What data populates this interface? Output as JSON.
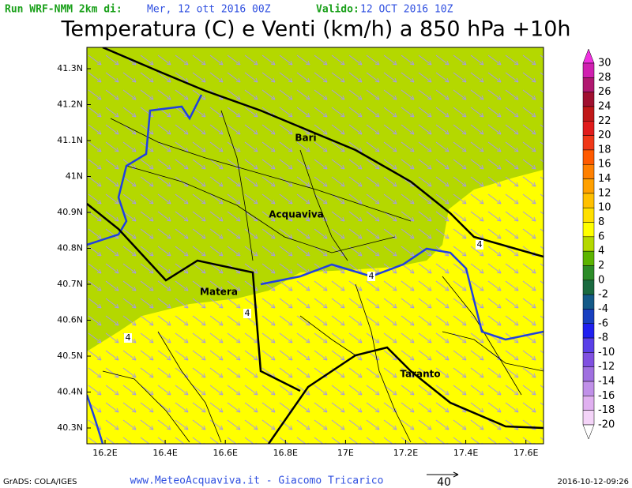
{
  "header": {
    "run_label": "Run WRF-NMM 2km di:",
    "run_date": "Mer, 12 ott 2016 00Z",
    "valid_label": "Valido:",
    "valid_date": "12 OCT 2016 10Z"
  },
  "title": "Temperatura (C) e Venti (km/h) a 850 hPa +10h",
  "y_axis_labels": [
    "41.3N",
    "41.2N",
    "41.1N",
    "41N",
    "40.9N",
    "40.8N",
    "40.7N",
    "40.6N",
    "40.5N",
    "40.4N",
    "40.3N"
  ],
  "x_axis_labels": [
    "16.2E",
    "16.4E",
    "16.6E",
    "16.8E",
    "17E",
    "17.2E",
    "17.4E",
    "17.6E"
  ],
  "cities": [
    "Bari",
    "Acquaviva",
    "Matera",
    "Taranto"
  ],
  "contour_labels": [
    "4",
    "4",
    "4",
    "4"
  ],
  "colorbar": {
    "levels": [
      30,
      28,
      26,
      24,
      22,
      20,
      18,
      16,
      14,
      12,
      10,
      8,
      6,
      4,
      2,
      0,
      -2,
      -4,
      -6,
      -8,
      -10,
      -12,
      -14,
      -16,
      -18,
      -20
    ],
    "colors": [
      "#f030e0",
      "#d020b0",
      "#b01870",
      "#a01030",
      "#c01818",
      "#e01c1c",
      "#f03818",
      "#ff5a00",
      "#ff8000",
      "#ffa000",
      "#ffc000",
      "#ffe000",
      "#ffff00",
      "#b4d800",
      "#5cb400",
      "#2c8c28",
      "#1a6a40",
      "#145a88",
      "#1840c0",
      "#2020f0",
      "#5a40e8",
      "#8050e0",
      "#a070e0",
      "#c090e8",
      "#e0b0f0",
      "#f4d4f8",
      "#ffffff"
    ]
  },
  "footer": {
    "left": "GrADS: COLA/IGES",
    "center": "www.MeteoAcquaviva.it - Giacomo Tricarico",
    "scale": "40",
    "right": "2016-10-12-09:26"
  }
}
